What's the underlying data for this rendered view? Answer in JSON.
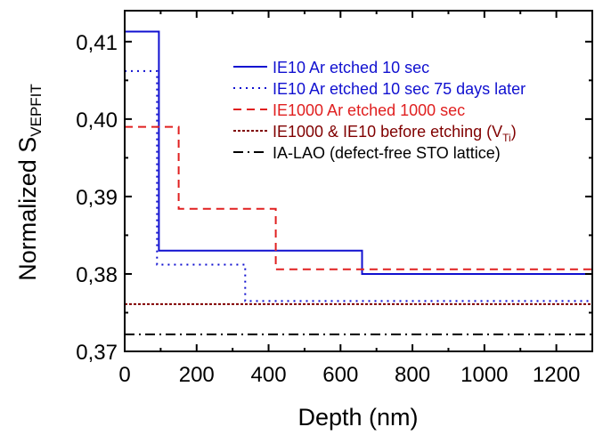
{
  "chart_data": {
    "type": "line",
    "xlabel": "Depth (nm)",
    "ylabel": "Normalized S",
    "ylabel_sub": "VEPFIT",
    "xlim": [
      0,
      1300
    ],
    "ylim": [
      0.37,
      0.414
    ],
    "x_ticks": [
      0,
      200,
      400,
      600,
      800,
      1000,
      1200
    ],
    "x_tick_labels": [
      "0",
      "200",
      "400",
      "600",
      "800",
      "1000",
      "1200"
    ],
    "y_ticks": [
      0.37,
      0.38,
      0.39,
      0.4,
      0.41
    ],
    "y_tick_labels": [
      "0,37",
      "0,38",
      "0,39",
      "0,40",
      "0,41"
    ],
    "grid": false,
    "legend_position": "top-right",
    "series": [
      {
        "name": "IE10 Ar etched 10 sec",
        "color": "#1010d0",
        "dash": "solid",
        "x": [
          0,
          95,
          95,
          660,
          660,
          1300
        ],
        "y": [
          0.4113,
          0.4113,
          0.383,
          0.383,
          0.38,
          0.38
        ]
      },
      {
        "name": "IE10 Ar etched 10 sec 75 days later",
        "color": "#1010d0",
        "dash": "dot",
        "x": [
          0,
          90,
          90,
          335,
          335,
          1300
        ],
        "y": [
          0.4062,
          0.4062,
          0.3812,
          0.3812,
          0.3765,
          0.3765
        ]
      },
      {
        "name": "IE1000 Ar etched 1000 sec",
        "color": "#e02020",
        "dash": "dash",
        "x": [
          0,
          150,
          150,
          420,
          420,
          1300
        ],
        "y": [
          0.399,
          0.399,
          0.3884,
          0.3884,
          0.3806,
          0.3806
        ]
      },
      {
        "name": "IE1000 & IE10 before etching (V",
        "name_sub": "Ti",
        "name_suffix": ")",
        "color": "#800000",
        "dash": "shortdot",
        "x": [
          0,
          1300
        ],
        "y": [
          0.3761,
          0.3761
        ]
      },
      {
        "name": "IA-LAO (defect-free STO lattice)",
        "color": "#000000",
        "dash": "dashdot",
        "x": [
          0,
          1300
        ],
        "y": [
          0.3722,
          0.3722
        ]
      }
    ]
  }
}
